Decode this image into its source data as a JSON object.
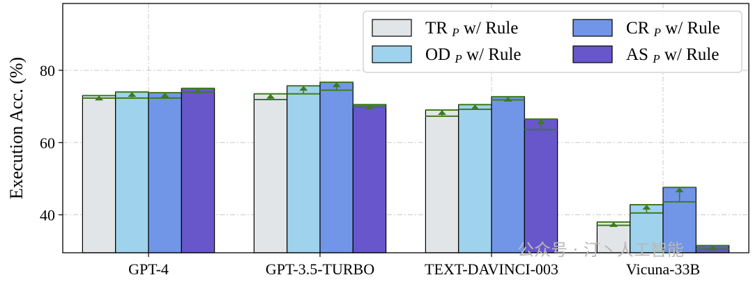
{
  "chart_data": {
    "type": "bar",
    "title": "",
    "ylabel": "Execution Acc. (%)",
    "xlabel": "",
    "ylim": [
      29.5,
      98.5
    ],
    "yticks": [
      40,
      60,
      80
    ],
    "grid": true,
    "legend_position": "top-right",
    "categories": [
      "GPT-4",
      "GPT-3.5-TURBO",
      "TEXT-DAVINCI-003",
      "Vicuna-33B"
    ],
    "series": [
      {
        "name": "TR",
        "sub": "P",
        "suffix": " w/ Rule",
        "color": "#e1e5e8",
        "base": [
          72.3,
          71.9,
          67.3,
          37.1
        ],
        "rule": [
          73.0,
          73.5,
          69.0,
          38.0
        ]
      },
      {
        "name": "OD",
        "sub": "P",
        "suffix": " w/ Rule",
        "color": "#9fd2ec",
        "base": [
          72.3,
          73.5,
          69.2,
          40.5
        ],
        "rule": [
          74.0,
          75.7,
          70.5,
          42.8
        ]
      },
      {
        "name": "CR",
        "sub": "P",
        "suffix": " w/ Rule",
        "color": "#7196e8",
        "base": [
          72.3,
          74.5,
          71.8,
          43.6
        ],
        "rule": [
          73.8,
          76.7,
          72.7,
          47.6
        ]
      },
      {
        "name": "AS",
        "sub": "P",
        "suffix": " w/ Rule",
        "color": "#6857cb",
        "base": [
          74.0,
          69.8,
          63.6,
          30.5
        ],
        "rule": [
          75.0,
          70.5,
          66.5,
          31.5
        ]
      }
    ],
    "marker_color": "#3f7a1e"
  },
  "watermark": "公众号 · 汀丶人工智能"
}
